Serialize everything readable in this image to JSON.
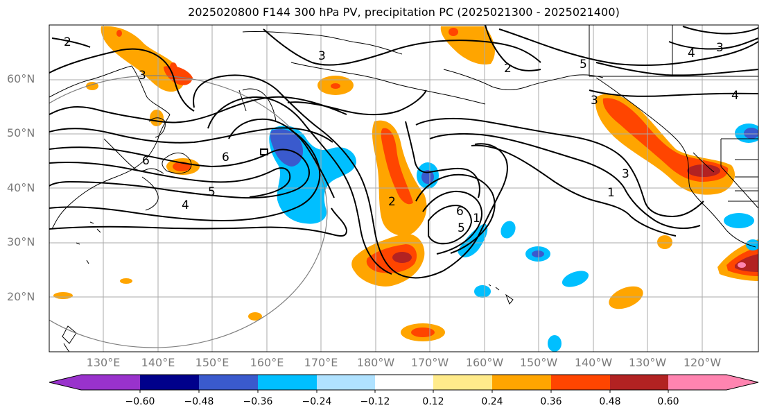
{
  "title": "2025020800 F144 300 hPa PV, precipitation PC (2025021300 - 2025021400)",
  "lat_labels": [
    "60°N",
    "50°N",
    "40°N",
    "30°N",
    "20°N"
  ],
  "lon_labels": [
    "130°E",
    "140°E",
    "150°E",
    "160°E",
    "170°E",
    "180°W",
    "170°W",
    "160°W",
    "150°W",
    "140°W",
    "130°W",
    "120°W"
  ],
  "contour_labels": [
    "2",
    "3",
    "3",
    "2",
    "5",
    "3",
    "4",
    "4",
    "3",
    "6",
    "6",
    "5",
    "4",
    "2",
    "6",
    "5",
    "1",
    "3",
    "1"
  ],
  "colorbar": {
    "tick_labels": [
      "−0.60",
      "−0.48",
      "−0.36",
      "−0.24",
      "−0.12",
      "0.12",
      "0.24",
      "0.36",
      "0.48",
      "0.60"
    ],
    "colors": [
      "#9932cc",
      "#00008b",
      "#3a5acd",
      "#00bfff",
      "#b0e2ff",
      "#ffffff",
      "#ffeb8b",
      "#ffa500",
      "#ff4500",
      "#b22222",
      "#ff84b0"
    ]
  }
}
